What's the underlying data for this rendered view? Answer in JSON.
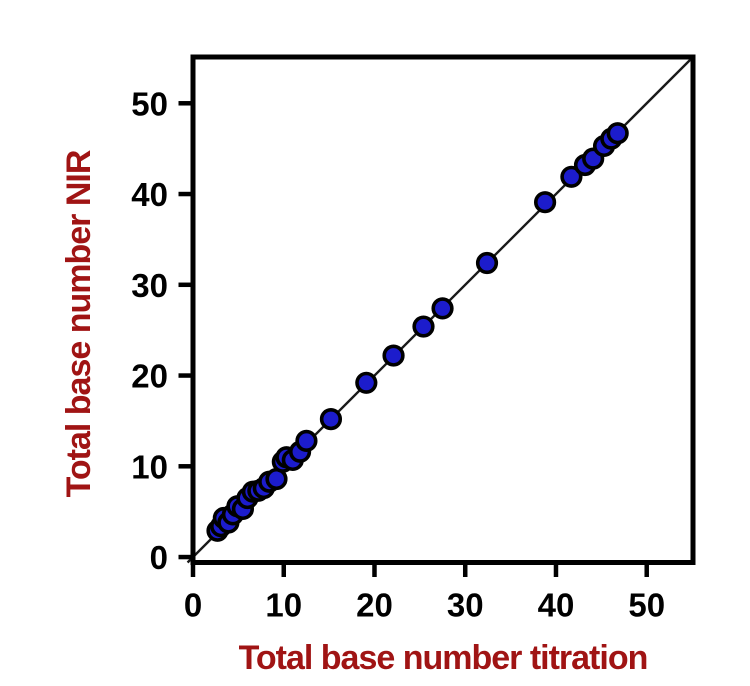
{
  "figure": {
    "background": "#ffffff"
  },
  "chart_data": {
    "type": "scatter",
    "title": "",
    "xlabel": "Total base number titration",
    "ylabel": "Total base number NIR",
    "xlim": [
      0,
      55.1
    ],
    "ylim": [
      -0.6,
      55.1
    ],
    "xticks": [
      0,
      10,
      20,
      30,
      40,
      50
    ],
    "yticks": [
      0,
      10,
      20,
      30,
      40,
      50
    ],
    "grid": false,
    "legend": "none",
    "identity_line": true,
    "series": [
      {
        "name": "samples",
        "marker": "circle",
        "points": [
          [
            2.7,
            2.9
          ],
          [
            3.1,
            3.4
          ],
          [
            3.4,
            4.3
          ],
          [
            3.9,
            3.8
          ],
          [
            4.4,
            4.7
          ],
          [
            4.9,
            5.6
          ],
          [
            5.5,
            5.3
          ],
          [
            6.0,
            6.5
          ],
          [
            6.6,
            7.2
          ],
          [
            7.2,
            7.3
          ],
          [
            7.8,
            7.6
          ],
          [
            8.4,
            8.3
          ],
          [
            9.2,
            8.6
          ],
          [
            9.9,
            10.5
          ],
          [
            10.3,
            11.0
          ],
          [
            11.0,
            10.7
          ],
          [
            11.8,
            11.6
          ],
          [
            12.5,
            12.8
          ],
          [
            15.2,
            15.2
          ],
          [
            19.1,
            19.2
          ],
          [
            22.1,
            22.2
          ],
          [
            25.4,
            25.4
          ],
          [
            27.5,
            27.4
          ],
          [
            32.4,
            32.4
          ],
          [
            38.8,
            39.1
          ],
          [
            41.7,
            41.9
          ],
          [
            43.2,
            43.2
          ],
          [
            44.1,
            43.9
          ],
          [
            45.3,
            45.3
          ],
          [
            46.1,
            46.1
          ],
          [
            46.8,
            46.7
          ]
        ]
      }
    ],
    "colors": {
      "marker_fill": "#1c1ccc",
      "marker_edge": "#000000",
      "line": "#1a1a1a",
      "frame": "#000000",
      "tick_label": "#000000",
      "axis_label": "#a01414"
    }
  }
}
